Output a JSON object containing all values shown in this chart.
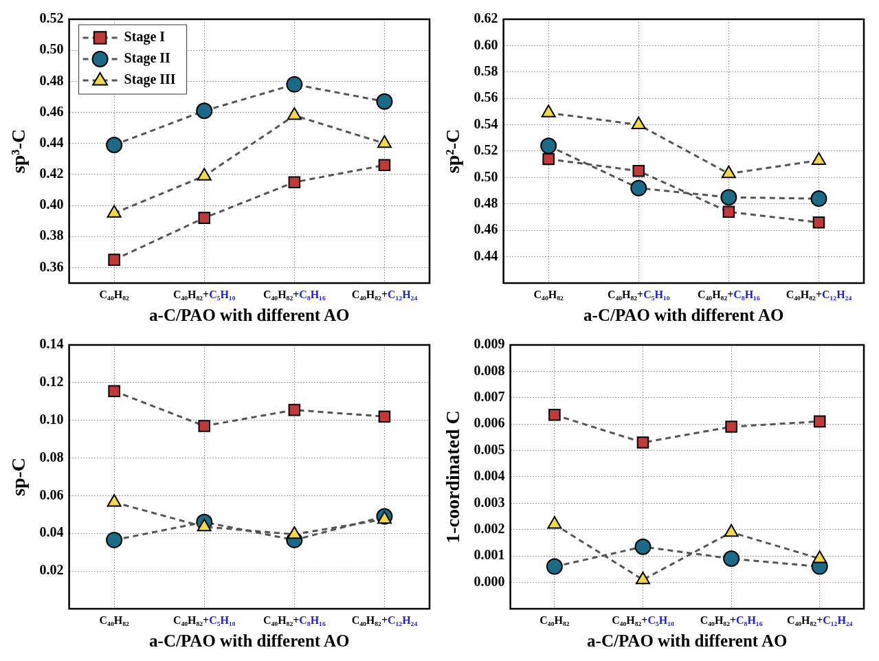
{
  "chart_data": [
    {
      "type": "line",
      "xlabel": "a-C/PAO with different AO",
      "ylabel": "sp³-C",
      "categories": [
        "C₄₀H₈₂",
        "C₄₀H₈₂+C₅H₁₀",
        "C₄₀H₈₂+C₈H₁₆",
        "C₄₀H₈₂+C₁₂H₂₄"
      ],
      "ylim": [
        0.35,
        0.52
      ],
      "yticks": [
        0.36,
        0.38,
        {
          "value": 0.4,
          "label": "0.40"
        },
        0.42,
        0.44,
        0.46,
        0.48,
        {
          "value": 0.5,
          "label": "0.50"
        },
        0.52
      ],
      "grid": true,
      "legend": "top left",
      "line_style": "dashed",
      "series": [
        {
          "name": "Stage I",
          "color": "#c0393b",
          "marker": "square",
          "values": [
            0.365,
            0.392,
            0.415,
            0.426
          ]
        },
        {
          "name": "Stage II",
          "color": "#1b6a86",
          "marker": "circle",
          "values": [
            0.439,
            0.461,
            0.478,
            0.467
          ]
        },
        {
          "name": "Stage III",
          "color": "#f0d84a",
          "marker": "triangle",
          "values": [
            0.395,
            0.419,
            0.458,
            0.44
          ]
        }
      ]
    },
    {
      "type": "line",
      "xlabel": "a-C/PAO with different AO",
      "ylabel": "sp²-C",
      "categories": [
        "C₄₀H₈₂",
        "C₄₀H₈₂+C₅H₁₀",
        "C₄₀H₈₂+C₈H₁₆",
        "C₄₀H₈₂+C₁₂H₂₄"
      ],
      "ylim": [
        0.42,
        0.62
      ],
      "yticks": [
        0.44,
        0.46,
        0.48,
        {
          "value": 0.5,
          "label": "0.50"
        },
        0.52,
        0.54,
        0.56,
        0.58,
        {
          "value": 0.6,
          "label": "0.60"
        },
        0.62
      ],
      "grid": true,
      "line_style": "dashed",
      "series": [
        {
          "color": "#c0393b",
          "marker": "square",
          "values": [
            0.514,
            0.505,
            0.474,
            0.466
          ]
        },
        {
          "color": "#1b6a86",
          "marker": "circle",
          "values": [
            0.524,
            0.492,
            0.485,
            0.484
          ]
        },
        {
          "color": "#f0d84a",
          "marker": "triangle",
          "values": [
            0.549,
            0.54,
            0.503,
            0.513
          ]
        }
      ]
    },
    {
      "type": "line",
      "xlabel": "a-C/PAO with different AO",
      "ylabel": "sp-C",
      "categories": [
        "C₄₀H₈₂",
        "C₄₀H₈₂+C₅H₁₀",
        "C₄₀H₈₂+C₈H₁₆",
        "C₄₀H₈₂+C₁₂H₂₄"
      ],
      "ylim": [
        0,
        0.14
      ],
      "yticks": [
        0.02,
        0.04,
        0.06,
        0.08,
        {
          "value": 0.1,
          "label": "0.10"
        },
        0.12,
        0.14
      ],
      "grid": true,
      "line_style": "dashed",
      "series": [
        {
          "color": "#c0393b",
          "marker": "square",
          "values": [
            0.1155,
            0.097,
            0.1055,
            0.102
          ]
        },
        {
          "color": "#1b6a86",
          "marker": "circle",
          "values": [
            0.0365,
            0.046,
            0.0365,
            0.049
          ]
        },
        {
          "color": "#f0d84a",
          "marker": "triangle",
          "values": [
            0.0565,
            0.0435,
            0.0395,
            0.0475
          ]
        }
      ]
    },
    {
      "type": "line",
      "xlabel": "a-C/PAO with different AO",
      "ylabel": "1-coordinated C",
      "categories": [
        "C₄₀H₈₂",
        "C₄₀H₈₂+C₅H₁₀",
        "C₄₀H₈₂+C₈H₁₆",
        "C₄₀H₈₂+C₁₂H₂₄"
      ],
      "ylim": [
        -0.001,
        0.009
      ],
      "yticks": [
        {
          "value": 0,
          "label": "0.000"
        },
        {
          "value": 0.001,
          "label": "0.001"
        },
        {
          "value": 0.002,
          "label": "0.002"
        },
        {
          "value": 0.003,
          "label": "0.003"
        },
        {
          "value": 0.004,
          "label": "0.004"
        },
        {
          "value": 0.005,
          "label": "0.005"
        },
        {
          "value": 0.006,
          "label": "0.006"
        },
        {
          "value": 0.007,
          "label": "0.007"
        },
        {
          "value": 0.008,
          "label": "0.008"
        },
        {
          "value": 0.009,
          "label": "0.009"
        }
      ],
      "grid": true,
      "line_style": "dashed",
      "series": [
        {
          "color": "#c0393b",
          "marker": "square",
          "values": [
            0.00635,
            0.0053,
            0.0059,
            0.0061
          ]
        },
        {
          "color": "#1b6a86",
          "marker": "circle",
          "values": [
            0.0006,
            0.00135,
            0.0009,
            0.0006
          ]
        },
        {
          "color": "#f0d84a",
          "marker": "triangle",
          "values": [
            0.0022,
            0.0001,
            0.0019,
            0.0009
          ]
        }
      ]
    }
  ]
}
